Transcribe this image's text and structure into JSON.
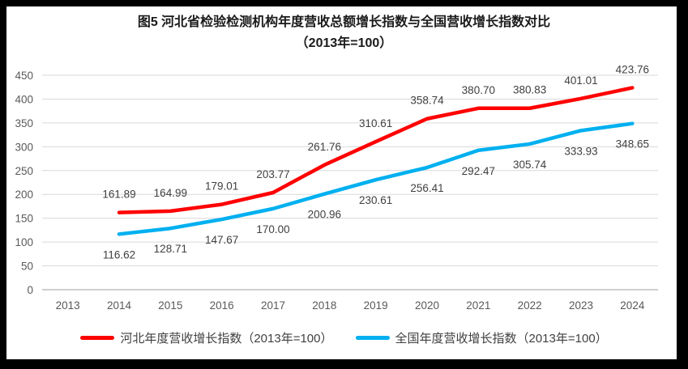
{
  "chart": {
    "title_line1": "图5  河北省检验检测机构年度营收总额增长指数与全国营收增长指数对比",
    "title_line2": "（2013年=100）"
  },
  "chart_data": {
    "type": "line",
    "categories": [
      "2013",
      "2014",
      "2015",
      "2016",
      "2017",
      "2018",
      "2019",
      "2020",
      "2021",
      "2022",
      "2023",
      "2024"
    ],
    "series": [
      {
        "name": "河北年度营收增长指数（2013年=100）",
        "key": "hebei",
        "color": "#ff0000",
        "label_position": "above",
        "values": [
          null,
          161.89,
          164.99,
          179.01,
          203.77,
          261.76,
          310.61,
          358.74,
          380.7,
          380.83,
          401.01,
          423.76
        ]
      },
      {
        "name": "全国年度营收增长指数（2013年=100）",
        "key": "national",
        "color": "#00b0f0",
        "label_position": "below",
        "values": [
          null,
          116.62,
          128.71,
          147.67,
          170.0,
          200.96,
          230.61,
          256.41,
          292.47,
          305.74,
          333.93,
          348.65
        ]
      }
    ],
    "title": "图5  河北省检验检测机构年度营收总额增长指数与全国营收增长指数对比（2013年=100）",
    "xlabel": "",
    "ylabel": "",
    "ylim": [
      0,
      450
    ],
    "yticks": [
      0,
      50,
      100,
      150,
      200,
      250,
      300,
      350,
      400,
      450
    ],
    "grid": true,
    "legend_position": "bottom",
    "colors": {
      "gridline": "#d9d9d9",
      "baseline": "#bfbfbf",
      "axis_text": "#595959",
      "data_label_text": "#404040"
    }
  }
}
